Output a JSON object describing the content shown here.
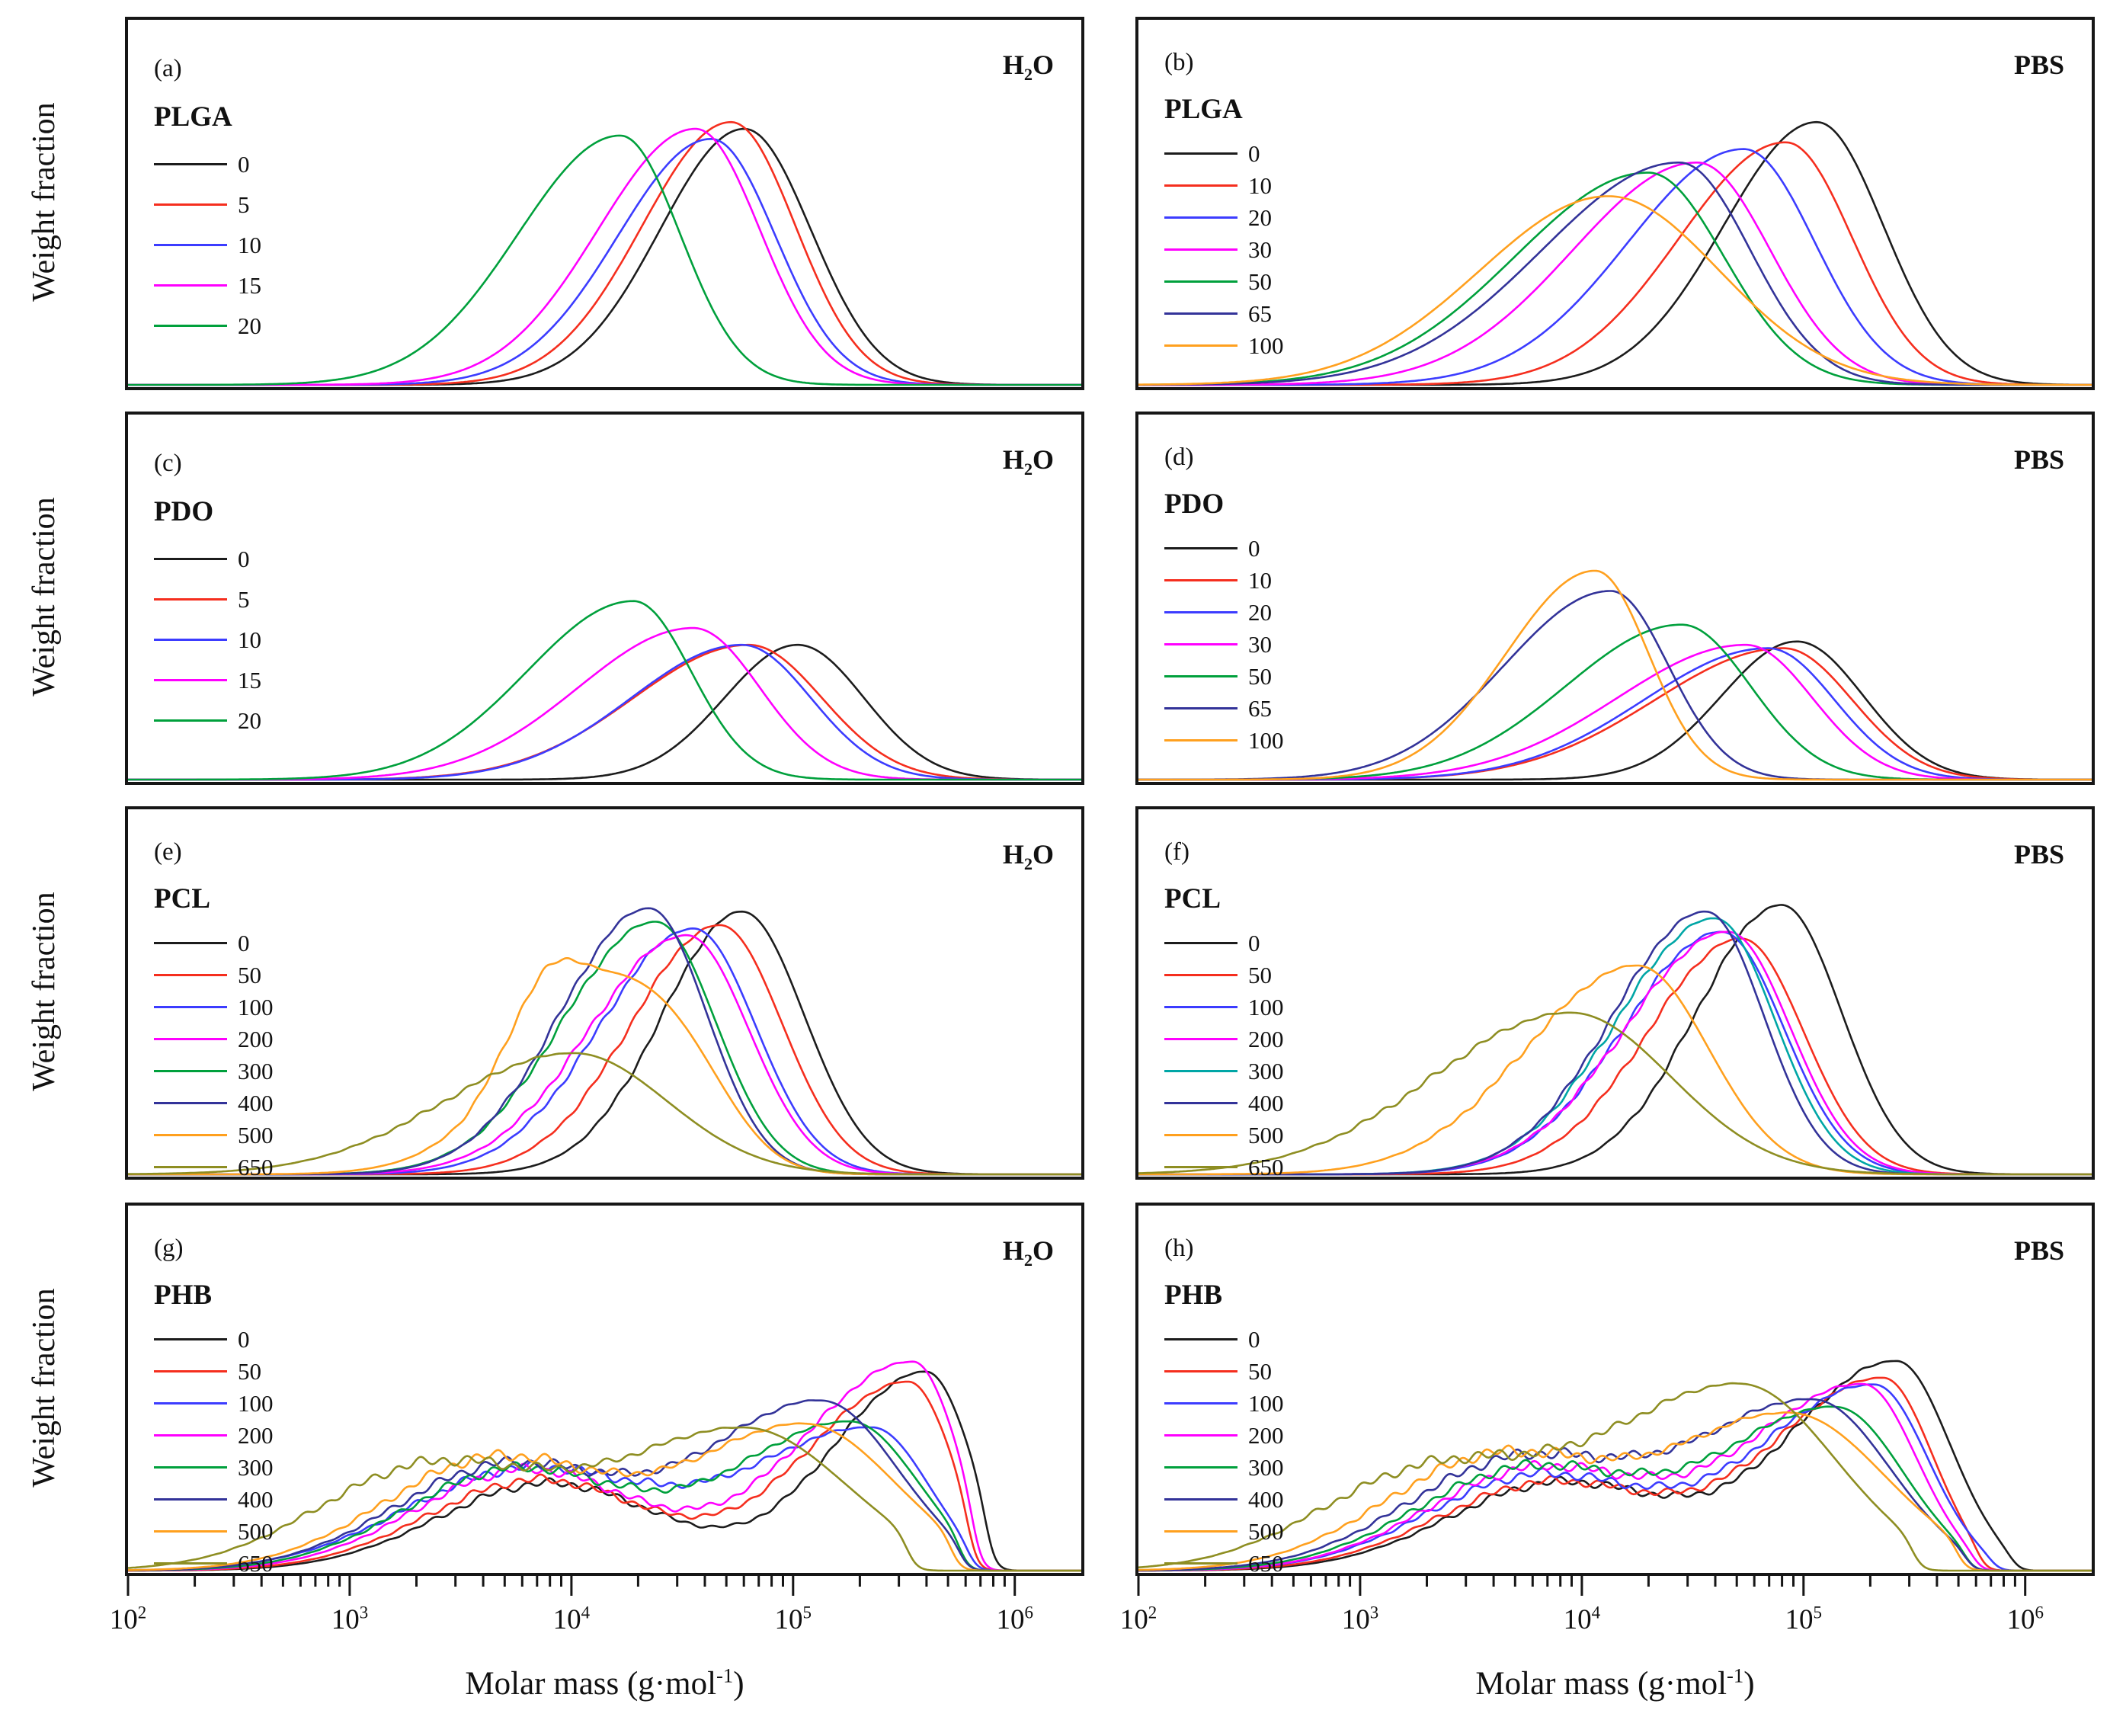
{
  "figure": {
    "ylabel": "Weight fraction",
    "xlabel": "Molar mass (g·mol^-1)",
    "x_ticks": [
      "10^2",
      "10^3",
      "10^4",
      "10^5",
      "10^6"
    ],
    "palette": {
      "black": "#1c1c1c",
      "red": "#f52e1e",
      "blue": "#3c3cff",
      "magenta": "#ff00ff",
      "green": "#00a03c",
      "navy": "#333399",
      "orange": "#ffa01e",
      "olive": "#8e8e22",
      "teal": "#00a6a6"
    }
  },
  "chart_data": [
    {
      "panel": "a",
      "corner_label": "(a)",
      "legend_title": "PLGA",
      "medium": "H2O",
      "type": "line",
      "xscale": "log",
      "xlim": [
        100,
        2000000
      ],
      "grid": false,
      "xlabel": "Molar mass (g·mol^-1)",
      "ylabel": "Weight fraction",
      "jitter": false,
      "series": [
        {
          "name": "0",
          "color": "#1c1c1c",
          "peak_log10": 4.78,
          "height": 0.76,
          "sigma_left": 0.38,
          "sigma_right": 0.3
        },
        {
          "name": "5",
          "color": "#f52e1e",
          "peak_log10": 4.72,
          "height": 0.78,
          "sigma_left": 0.4,
          "sigma_right": 0.29
        },
        {
          "name": "10",
          "color": "#3c3cff",
          "peak_log10": 4.63,
          "height": 0.73,
          "sigma_left": 0.42,
          "sigma_right": 0.29
        },
        {
          "name": "15",
          "color": "#ff00ff",
          "peak_log10": 4.56,
          "height": 0.76,
          "sigma_left": 0.44,
          "sigma_right": 0.29
        },
        {
          "name": "20",
          "color": "#00a03c",
          "peak_log10": 4.22,
          "height": 0.74,
          "sigma_left": 0.46,
          "sigma_right": 0.27
        }
      ]
    },
    {
      "panel": "b",
      "corner_label": "(b)",
      "legend_title": "PLGA",
      "medium": "PBS",
      "type": "line",
      "xscale": "log",
      "xlim": [
        100,
        2000000
      ],
      "grid": false,
      "xlabel": "Molar mass (g·mol^-1)",
      "ylabel": "Weight fraction",
      "jitter": false,
      "series": [
        {
          "name": "0",
          "color": "#1c1c1c",
          "peak_log10": 5.06,
          "height": 0.78,
          "sigma_left": 0.42,
          "sigma_right": 0.3
        },
        {
          "name": "10",
          "color": "#f52e1e",
          "peak_log10": 4.92,
          "height": 0.72,
          "sigma_left": 0.48,
          "sigma_right": 0.3
        },
        {
          "name": "20",
          "color": "#3c3cff",
          "peak_log10": 4.73,
          "height": 0.7,
          "sigma_left": 0.52,
          "sigma_right": 0.32
        },
        {
          "name": "30",
          "color": "#ff00ff",
          "peak_log10": 4.52,
          "height": 0.66,
          "sigma_left": 0.56,
          "sigma_right": 0.33
        },
        {
          "name": "50",
          "color": "#00a03c",
          "peak_log10": 4.3,
          "height": 0.63,
          "sigma_left": 0.6,
          "sigma_right": 0.34
        },
        {
          "name": "65",
          "color": "#333399",
          "peak_log10": 4.44,
          "height": 0.66,
          "sigma_left": 0.62,
          "sigma_right": 0.32
        },
        {
          "name": "100",
          "color": "#ffa01e",
          "peak_log10": 4.12,
          "height": 0.56,
          "sigma_left": 0.58,
          "sigma_right": 0.5
        }
      ]
    },
    {
      "panel": "c",
      "corner_label": "(c)",
      "legend_title": "PDO",
      "medium": "H2O",
      "type": "line",
      "xscale": "log",
      "xlim": [
        100,
        2000000
      ],
      "grid": false,
      "xlabel": "Molar mass (g·mol^-1)",
      "ylabel": "Weight fraction",
      "jitter": false,
      "series": [
        {
          "name": "0",
          "color": "#1c1c1c",
          "peak_log10": 5.02,
          "height": 0.4,
          "sigma_left": 0.33,
          "sigma_right": 0.3
        },
        {
          "name": "5",
          "color": "#f52e1e",
          "peak_log10": 4.8,
          "height": 0.4,
          "sigma_left": 0.52,
          "sigma_right": 0.33
        },
        {
          "name": "10",
          "color": "#3c3cff",
          "peak_log10": 4.77,
          "height": 0.4,
          "sigma_left": 0.5,
          "sigma_right": 0.31
        },
        {
          "name": "15",
          "color": "#ff00ff",
          "peak_log10": 4.55,
          "height": 0.45,
          "sigma_left": 0.52,
          "sigma_right": 0.3
        },
        {
          "name": "20",
          "color": "#00a03c",
          "peak_log10": 4.28,
          "height": 0.53,
          "sigma_left": 0.48,
          "sigma_right": 0.26
        }
      ]
    },
    {
      "panel": "d",
      "corner_label": "(d)",
      "legend_title": "PDO",
      "medium": "PBS",
      "type": "line",
      "xscale": "log",
      "xlim": [
        100,
        2000000
      ],
      "grid": false,
      "xlabel": "Molar mass (g·mol^-1)",
      "ylabel": "Weight fraction",
      "jitter": false,
      "series": [
        {
          "name": "0",
          "color": "#1c1c1c",
          "peak_log10": 4.97,
          "height": 0.41,
          "sigma_left": 0.34,
          "sigma_right": 0.3
        },
        {
          "name": "10",
          "color": "#f52e1e",
          "peak_log10": 4.91,
          "height": 0.39,
          "sigma_left": 0.58,
          "sigma_right": 0.31
        },
        {
          "name": "20",
          "color": "#3c3cff",
          "peak_log10": 4.84,
          "height": 0.39,
          "sigma_left": 0.56,
          "sigma_right": 0.3
        },
        {
          "name": "30",
          "color": "#ff00ff",
          "peak_log10": 4.74,
          "height": 0.4,
          "sigma_left": 0.58,
          "sigma_right": 0.3
        },
        {
          "name": "50",
          "color": "#00a03c",
          "peak_log10": 4.45,
          "height": 0.46,
          "sigma_left": 0.52,
          "sigma_right": 0.31
        },
        {
          "name": "65",
          "color": "#333399",
          "peak_log10": 4.13,
          "height": 0.56,
          "sigma_left": 0.48,
          "sigma_right": 0.26
        },
        {
          "name": "100",
          "color": "#ffa01e",
          "peak_log10": 4.06,
          "height": 0.62,
          "sigma_left": 0.4,
          "sigma_right": 0.24
        }
      ]
    },
    {
      "panel": "e",
      "corner_label": "(e)",
      "legend_title": "PCL",
      "medium": "H2O",
      "type": "line",
      "xscale": "log",
      "xlim": [
        100,
        2000000
      ],
      "grid": false,
      "xlabel": "Molar mass (g·mol^-1)",
      "ylabel": "Weight fraction",
      "jitter": true,
      "series": [
        {
          "name": "0",
          "color": "#1c1c1c",
          "peak_log10": 4.77,
          "height": 0.78,
          "sigma_left": 0.36,
          "sigma_right": 0.28
        },
        {
          "name": "50",
          "color": "#f52e1e",
          "peak_log10": 4.67,
          "height": 0.74,
          "sigma_left": 0.4,
          "sigma_right": 0.28
        },
        {
          "name": "100",
          "color": "#3c3cff",
          "peak_log10": 4.55,
          "height": 0.73,
          "sigma_left": 0.42,
          "sigma_right": 0.28
        },
        {
          "name": "200",
          "color": "#ff00ff",
          "peak_log10": 4.52,
          "height": 0.71,
          "sigma_left": 0.44,
          "sigma_right": 0.28
        },
        {
          "name": "300",
          "color": "#00a03c",
          "peak_log10": 4.38,
          "height": 0.75,
          "sigma_left": 0.42,
          "sigma_right": 0.27
        },
        {
          "name": "400",
          "color": "#333399",
          "peak_log10": 4.35,
          "height": 0.79,
          "sigma_left": 0.4,
          "sigma_right": 0.26
        },
        {
          "name": "500",
          "color": "#ffa01e",
          "peak_log10": 4.18,
          "height": 0.52,
          "sigma_left": 0.42,
          "sigma_right": 0.3,
          "bumps": [
            {
              "at": 3.88,
              "h": 0.2,
              "s": 0.17
            },
            {
              "at": 4.55,
              "h": 0.16,
              "s": 0.22
            }
          ]
        },
        {
          "name": "650",
          "color": "#8e8e22",
          "peak_log10": 4.01,
          "height": 0.36,
          "sigma_left": 0.58,
          "sigma_right": 0.42
        }
      ]
    },
    {
      "panel": "f",
      "corner_label": "(f)",
      "legend_title": "PCL",
      "medium": "PBS",
      "type": "line",
      "xscale": "log",
      "xlim": [
        100,
        2000000
      ],
      "grid": false,
      "xlabel": "Molar mass (g·mol^-1)",
      "ylabel": "Weight fraction",
      "jitter": true,
      "series": [
        {
          "name": "0",
          "color": "#1c1c1c",
          "peak_log10": 4.9,
          "height": 0.8,
          "sigma_left": 0.38,
          "sigma_right": 0.27
        },
        {
          "name": "50",
          "color": "#f52e1e",
          "peak_log10": 4.72,
          "height": 0.7,
          "sigma_left": 0.42,
          "sigma_right": 0.28
        },
        {
          "name": "100",
          "color": "#3c3cff",
          "peak_log10": 4.63,
          "height": 0.72,
          "sigma_left": 0.44,
          "sigma_right": 0.28
        },
        {
          "name": "200",
          "color": "#ff00ff",
          "peak_log10": 4.66,
          "height": 0.72,
          "sigma_left": 0.46,
          "sigma_right": 0.28
        },
        {
          "name": "300",
          "color": "#00a6a6",
          "peak_log10": 4.6,
          "height": 0.76,
          "sigma_left": 0.44,
          "sigma_right": 0.27
        },
        {
          "name": "400",
          "color": "#333399",
          "peak_log10": 4.56,
          "height": 0.78,
          "sigma_left": 0.42,
          "sigma_right": 0.26
        },
        {
          "name": "500",
          "color": "#ffa01e",
          "peak_log10": 4.25,
          "height": 0.62,
          "sigma_left": 0.5,
          "sigma_right": 0.32
        },
        {
          "name": "650",
          "color": "#8e8e22",
          "peak_log10": 3.95,
          "height": 0.48,
          "sigma_left": 0.62,
          "sigma_right": 0.45
        }
      ]
    },
    {
      "panel": "g",
      "corner_label": "(g)",
      "legend_title": "PHB",
      "medium": "H2O",
      "type": "line",
      "xscale": "log",
      "xlim": [
        100,
        2000000
      ],
      "grid": false,
      "xlabel": "Molar mass (g·mol^-1)",
      "ylabel": "Weight fraction",
      "jitter": true,
      "series": [
        {
          "name": "0",
          "color": "#1c1c1c",
          "peak_log10": 5.6,
          "height": 0.59,
          "sigma_left": 0.42,
          "sigma_right": 0.2,
          "bumps": [
            {
              "at": 3.9,
              "h": 0.26,
              "s": 0.5
            }
          ],
          "cutoff_log10": 5.88
        },
        {
          "name": "50",
          "color": "#f52e1e",
          "peak_log10": 5.52,
          "height": 0.56,
          "sigma_left": 0.46,
          "sigma_right": 0.2,
          "bumps": [
            {
              "at": 3.85,
              "h": 0.27,
              "s": 0.5
            }
          ],
          "cutoff_log10": 5.8
        },
        {
          "name": "100",
          "color": "#3c3cff",
          "peak_log10": 5.36,
          "height": 0.42,
          "sigma_left": 0.55,
          "sigma_right": 0.25,
          "bumps": [
            {
              "at": 3.8,
              "h": 0.3,
              "s": 0.55
            }
          ],
          "cutoff_log10": 5.8
        },
        {
          "name": "200",
          "color": "#ff00ff",
          "peak_log10": 5.54,
          "height": 0.62,
          "sigma_left": 0.5,
          "sigma_right": 0.2,
          "bumps": [
            {
              "at": 3.8,
              "h": 0.3,
              "s": 0.5
            }
          ],
          "cutoff_log10": 5.82
        },
        {
          "name": "300",
          "color": "#00a03c",
          "peak_log10": 5.26,
          "height": 0.44,
          "sigma_left": 0.52,
          "sigma_right": 0.3,
          "bumps": [
            {
              "at": 3.75,
              "h": 0.3,
              "s": 0.5
            }
          ],
          "cutoff_log10": 5.76
        },
        {
          "name": "400",
          "color": "#333399",
          "peak_log10": 5.13,
          "height": 0.5,
          "sigma_left": 0.52,
          "sigma_right": 0.34,
          "bumps": [
            {
              "at": 3.7,
              "h": 0.31,
              "s": 0.5
            }
          ],
          "cutoff_log10": 5.76
        },
        {
          "name": "500",
          "color": "#ffa01e",
          "peak_log10": 5.06,
          "height": 0.43,
          "sigma_left": 0.52,
          "sigma_right": 0.4,
          "bumps": [
            {
              "at": 3.65,
              "h": 0.33,
              "s": 0.5
            }
          ],
          "cutoff_log10": 5.72
        },
        {
          "name": "650",
          "color": "#8e8e22",
          "peak_log10": 4.79,
          "height": 0.42,
          "sigma_left": 0.6,
          "sigma_right": 0.45,
          "bumps": [
            {
              "at": 3.35,
              "h": 0.3,
              "s": 0.5
            }
          ],
          "cutoff_log10": 5.52
        }
      ]
    },
    {
      "panel": "h",
      "corner_label": "(h)",
      "legend_title": "PHB",
      "medium": "PBS",
      "type": "line",
      "xscale": "log",
      "xlim": [
        100,
        2000000
      ],
      "grid": false,
      "xlabel": "Molar mass (g·mol^-1)",
      "ylabel": "Weight fraction",
      "jitter": true,
      "series": [
        {
          "name": "0",
          "color": "#1c1c1c",
          "peak_log10": 5.42,
          "height": 0.62,
          "sigma_left": 0.48,
          "sigma_right": 0.24,
          "bumps": [
            {
              "at": 3.9,
              "h": 0.26,
              "s": 0.5
            }
          ],
          "cutoff_log10": 5.95
        },
        {
          "name": "50",
          "color": "#f52e1e",
          "peak_log10": 5.36,
          "height": 0.57,
          "sigma_left": 0.5,
          "sigma_right": 0.22,
          "bumps": [
            {
              "at": 3.85,
              "h": 0.26,
              "s": 0.5
            }
          ],
          "cutoff_log10": 5.8
        },
        {
          "name": "100",
          "color": "#3c3cff",
          "peak_log10": 5.32,
          "height": 0.55,
          "sigma_left": 0.52,
          "sigma_right": 0.24,
          "bumps": [
            {
              "at": 3.8,
              "h": 0.28,
              "s": 0.5
            }
          ],
          "cutoff_log10": 5.86
        },
        {
          "name": "200",
          "color": "#ff00ff",
          "peak_log10": 5.27,
          "height": 0.55,
          "sigma_left": 0.52,
          "sigma_right": 0.24,
          "bumps": [
            {
              "at": 3.8,
              "h": 0.3,
              "s": 0.5
            }
          ],
          "cutoff_log10": 5.78
        },
        {
          "name": "300",
          "color": "#00a03c",
          "peak_log10": 5.15,
          "height": 0.48,
          "sigma_left": 0.52,
          "sigma_right": 0.3,
          "bumps": [
            {
              "at": 3.75,
              "h": 0.3,
              "s": 0.5
            }
          ],
          "cutoff_log10": 5.74
        },
        {
          "name": "400",
          "color": "#333399",
          "peak_log10": 5.05,
          "height": 0.5,
          "sigma_left": 0.54,
          "sigma_right": 0.34,
          "bumps": [
            {
              "at": 3.7,
              "h": 0.32,
              "s": 0.5
            }
          ],
          "cutoff_log10": 5.74
        },
        {
          "name": "500",
          "color": "#ffa01e",
          "peak_log10": 4.95,
          "height": 0.46,
          "sigma_left": 0.54,
          "sigma_right": 0.42,
          "bumps": [
            {
              "at": 3.6,
              "h": 0.33,
              "s": 0.5
            }
          ],
          "cutoff_log10": 5.7
        },
        {
          "name": "650",
          "color": "#8e8e22",
          "peak_log10": 4.72,
          "height": 0.55,
          "sigma_left": 0.62,
          "sigma_right": 0.42,
          "bumps": [
            {
              "at": 3.3,
              "h": 0.28,
              "s": 0.5
            }
          ],
          "cutoff_log10": 5.5
        }
      ]
    }
  ]
}
